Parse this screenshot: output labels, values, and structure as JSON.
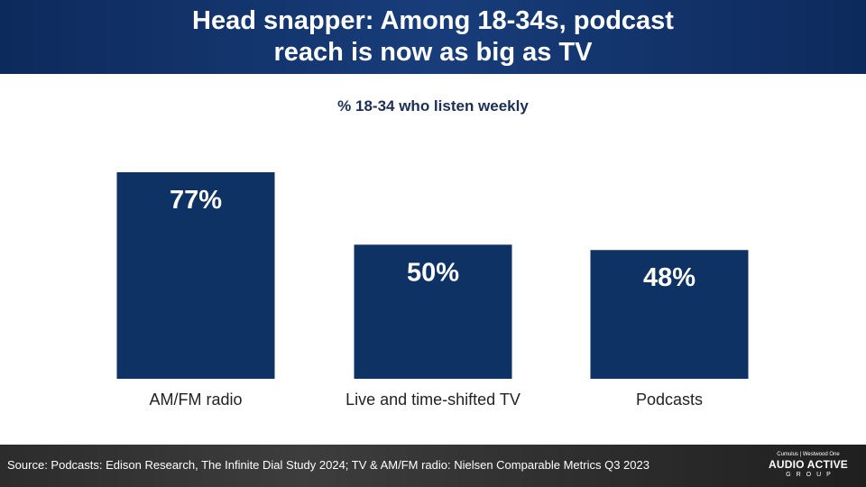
{
  "header": {
    "title_line1": "Head snapper: Among 18-34s, podcast",
    "title_line2": "reach is now as big as TV"
  },
  "chart_data": {
    "type": "bar",
    "title": "Head snapper: Among 18-34s, podcast reach is now as big as TV",
    "subtitle": "% 18-34 who listen weekly",
    "categories": [
      "AM/FM radio",
      "Live and time-shifted TV",
      "Podcasts"
    ],
    "values": [
      77,
      50,
      48
    ],
    "value_labels": [
      "77%",
      "50%",
      "48%"
    ],
    "unit": "%",
    "bar_color": "#0e3263",
    "label_color": "#ffffff",
    "ylim": [
      0,
      100
    ],
    "grid": false,
    "legend": "none"
  },
  "footer": {
    "source": "Source: Podcasts: Edison Research, The Infinite Dial Study 2024; TV & AM/FM radio: Nielsen Comparable Metrics Q3 2023",
    "logo_top": "Cumulus | Westwood One",
    "logo_brand": "AUDIO ACTIVE",
    "logo_group": "GROUP"
  }
}
